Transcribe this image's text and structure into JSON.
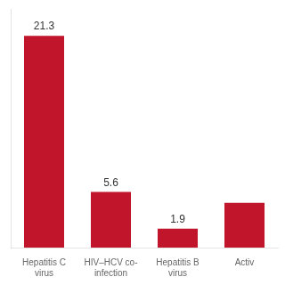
{
  "chart_data": {
    "type": "bar",
    "categories": [
      "Hepatitis C\nvirus",
      "HIV–HCV co-\ninfection",
      "Hepatitis B\nvirus",
      "Activ"
    ],
    "values": [
      21.3,
      5.6,
      1.9,
      4.5
    ],
    "value_labels": [
      "21.3",
      "5.6",
      "1.9",
      null
    ],
    "color": "#c0152a",
    "ylim": [
      0,
      24
    ],
    "grid": false,
    "tick_labels": "x"
  }
}
